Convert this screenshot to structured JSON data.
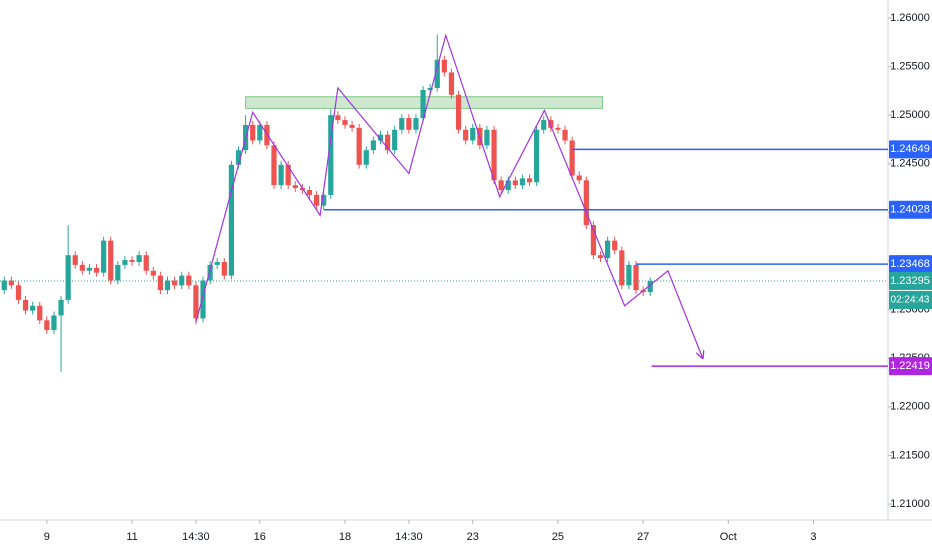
{
  "chart_data": {
    "type": "candlestick",
    "up_color": "#26a69a",
    "down_color": "#ef5350",
    "x": [
      -6,
      -5,
      -4,
      -3,
      -2,
      -1,
      0,
      1,
      2,
      3,
      4,
      5,
      6,
      7,
      8,
      9,
      10,
      11,
      12,
      13,
      14,
      15,
      16,
      17,
      18,
      19,
      20,
      21,
      22,
      23,
      24,
      25,
      26,
      27,
      28,
      29,
      30,
      31,
      32,
      33,
      34,
      35,
      36,
      37,
      38,
      39,
      40,
      41,
      42,
      43,
      44,
      45,
      46,
      47,
      48,
      49,
      50,
      51,
      52,
      53,
      54,
      55,
      56,
      57,
      58,
      59,
      60,
      61,
      62,
      63,
      64,
      65,
      66,
      67,
      68,
      69,
      70,
      71,
      72,
      73,
      74,
      75,
      76,
      77,
      78,
      79,
      80,
      81,
      82,
      83,
      84,
      85
    ],
    "open": [
      1.232,
      1.233,
      1.2325,
      1.231,
      1.2299,
      1.2304,
      1.2289,
      1.2279,
      1.2294,
      1.231,
      1.2356,
      1.2346,
      1.234,
      1.2343,
      1.2338,
      1.2371,
      1.233,
      1.2346,
      1.2351,
      1.2349,
      1.2356,
      1.234,
      1.2335,
      1.232,
      1.233,
      1.2325,
      1.2335,
      1.2325,
      1.2291,
      1.233,
      1.2346,
      1.2349,
      1.2335,
      1.2449,
      1.2464,
      1.249,
      1.2474,
      1.249,
      1.2469,
      1.2428,
      1.2449,
      1.2428,
      1.2425,
      1.2423,
      1.2418,
      1.2407,
      1.2418,
      1.25,
      1.2495,
      1.249,
      1.2487,
      1.2449,
      1.2464,
      1.2474,
      1.248,
      1.2464,
      1.2485,
      1.2497,
      1.2485,
      1.2497,
      1.2526,
      1.2528,
      1.2557,
      1.2544,
      1.2521,
      1.2485,
      1.2474,
      1.2487,
      1.2469,
      1.2485,
      1.2433,
      1.2423,
      1.2433,
      1.2428,
      1.2435,
      1.2431,
      1.2485,
      1.2495,
      1.2487,
      1.2485,
      1.2474,
      1.2438,
      1.2433,
      1.2387,
      1.2356,
      1.2353,
      1.2371,
      1.2361,
      1.2325,
      1.2346,
      1.232,
      1.2318
    ],
    "high": [
      1.2334,
      1.2334,
      1.2329,
      1.2314,
      1.2308,
      1.2308,
      1.2293,
      1.2298,
      1.2314,
      1.2387,
      1.236,
      1.235,
      1.2347,
      1.2347,
      1.2375,
      1.2375,
      1.235,
      1.2355,
      1.2355,
      1.236,
      1.236,
      1.2344,
      1.2339,
      1.2334,
      1.2334,
      1.2339,
      1.2339,
      1.2329,
      1.2334,
      1.235,
      1.2353,
      1.2353,
      1.2453,
      1.2468,
      1.25,
      1.2494,
      1.2494,
      1.2494,
      1.2473,
      1.2453,
      1.2453,
      1.2432,
      1.2429,
      1.2427,
      1.2422,
      1.2422,
      1.2506,
      1.2504,
      1.2499,
      1.2494,
      1.2491,
      1.2468,
      1.2478,
      1.2484,
      1.2484,
      1.2489,
      1.2501,
      1.2501,
      1.2501,
      1.253,
      1.2532,
      1.2583,
      1.2561,
      1.2548,
      1.2525,
      1.2489,
      1.2491,
      1.2491,
      1.2489,
      1.2489,
      1.2437,
      1.2437,
      1.2437,
      1.2439,
      1.2439,
      1.2489,
      1.2499,
      1.2499,
      1.2491,
      1.2489,
      1.2478,
      1.2442,
      1.2437,
      1.2391,
      1.236,
      1.2375,
      1.2375,
      1.2365,
      1.235,
      1.235,
      1.2324,
      1.2333
    ],
    "low": [
      1.2316,
      1.2321,
      1.2306,
      1.2295,
      1.2295,
      1.2285,
      1.2275,
      1.2275,
      1.2236,
      1.2306,
      1.2342,
      1.2336,
      1.2336,
      1.2334,
      1.2334,
      1.2326,
      1.2326,
      1.2342,
      1.2345,
      1.2345,
      1.2336,
      1.2331,
      1.2316,
      1.2316,
      1.2321,
      1.2321,
      1.2321,
      1.2285,
      1.2287,
      1.2326,
      1.2342,
      1.2331,
      1.2331,
      1.2445,
      1.246,
      1.247,
      1.247,
      1.2465,
      1.2424,
      1.2424,
      1.2424,
      1.2421,
      1.2419,
      1.2414,
      1.2403,
      1.2403,
      1.2414,
      1.2491,
      1.2486,
      1.2483,
      1.2445,
      1.2445,
      1.246,
      1.247,
      1.246,
      1.246,
      1.2481,
      1.2481,
      1.2481,
      1.2493,
      1.2522,
      1.2524,
      1.254,
      1.2517,
      1.2481,
      1.247,
      1.247,
      1.2465,
      1.2465,
      1.2429,
      1.2419,
      1.2419,
      1.2424,
      1.2424,
      1.2427,
      1.2427,
      1.2481,
      1.2483,
      1.2481,
      1.247,
      1.2434,
      1.2429,
      1.2383,
      1.2352,
      1.2349,
      1.2349,
      1.2357,
      1.2321,
      1.2321,
      1.2316,
      1.2314,
      1.2314
    ],
    "close": [
      1.233,
      1.2325,
      1.231,
      1.2299,
      1.2304,
      1.2289,
      1.2279,
      1.2294,
      1.231,
      1.2356,
      1.2346,
      1.234,
      1.2343,
      1.2338,
      1.2371,
      1.233,
      1.2346,
      1.2351,
      1.2349,
      1.2356,
      1.234,
      1.2335,
      1.232,
      1.233,
      1.2325,
      1.2335,
      1.2325,
      1.2291,
      1.233,
      1.2346,
      1.2349,
      1.2335,
      1.2449,
      1.2464,
      1.249,
      1.2474,
      1.249,
      1.2469,
      1.2428,
      1.2449,
      1.2428,
      1.2425,
      1.2423,
      1.2418,
      1.2407,
      1.2418,
      1.25,
      1.2495,
      1.249,
      1.2487,
      1.2449,
      1.2464,
      1.2474,
      1.248,
      1.2464,
      1.2485,
      1.2497,
      1.2485,
      1.2497,
      1.2526,
      1.2528,
      1.2557,
      1.2544,
      1.2521,
      1.2485,
      1.2474,
      1.2487,
      1.2469,
      1.2485,
      1.2433,
      1.2423,
      1.2433,
      1.2428,
      1.2435,
      1.2431,
      1.2485,
      1.2495,
      1.2487,
      1.2485,
      1.2474,
      1.2438,
      1.2433,
      1.2387,
      1.2356,
      1.2353,
      1.2371,
      1.2361,
      1.2325,
      1.2346,
      1.232,
      1.2318,
      1.23295
    ],
    "xlim": [
      -6.6,
      118.5
    ],
    "ylim": [
      1.20836,
      1.26185
    ],
    "xticks": [
      {
        "value": 0,
        "label": "9"
      },
      {
        "value": 12,
        "label": "11"
      },
      {
        "value": 21,
        "label": "14:30"
      },
      {
        "value": 30,
        "label": "16"
      },
      {
        "value": 42,
        "label": "18"
      },
      {
        "value": 51,
        "label": "14:30"
      },
      {
        "value": 60,
        "label": "23"
      },
      {
        "value": 72,
        "label": "25"
      },
      {
        "value": 84,
        "label": "27"
      },
      {
        "value": 96,
        "label": "Oct"
      },
      {
        "value": 108,
        "label": "3"
      }
    ],
    "yticks": [
      {
        "value": 1.21,
        "label": "1.21000"
      },
      {
        "value": 1.215,
        "label": "1.21500"
      },
      {
        "value": 1.22,
        "label": "1.22000"
      },
      {
        "value": 1.225,
        "label": "1.22500"
      },
      {
        "value": 1.23,
        "label": "1.23000"
      },
      {
        "value": 1.235,
        "label": "1.23500"
      },
      {
        "value": 1.24,
        "label": "1.24000"
      },
      {
        "value": 1.245,
        "label": "1.24500"
      },
      {
        "value": 1.25,
        "label": "1.25000"
      },
      {
        "value": 1.255,
        "label": "1.25500"
      },
      {
        "value": 1.26,
        "label": "1.26000"
      }
    ],
    "grid": false,
    "levels": [
      {
        "value": 1.24649,
        "start": 74,
        "color": "#2962ff"
      },
      {
        "value": 1.24028,
        "start": 39,
        "color": "#2962ff"
      },
      {
        "value": 1.23468,
        "start": 83,
        "color": "#2962ff"
      },
      {
        "value": 1.22419,
        "start": 85.2,
        "color": "#b025e0"
      }
    ],
    "last_price": 1.23295,
    "last_price_color": "#26a69a",
    "countdown": "02:24:43",
    "zone": {
      "x": [
        28,
        78.3
      ],
      "y": [
        1.2507,
        1.2519
      ],
      "color": "#a5d6a7"
    },
    "pattern": {
      "x": [
        21,
        29,
        38.5,
        41,
        51,
        56.2,
        63.8,
        70.1,
        81.4,
        87.5,
        92.4
      ],
      "y": [
        1.2287,
        1.2503,
        1.2397,
        1.2528,
        1.244,
        1.2582,
        1.2416,
        1.2505,
        1.2304,
        1.234,
        1.225
      ],
      "color": "#a334e3"
    }
  }
}
